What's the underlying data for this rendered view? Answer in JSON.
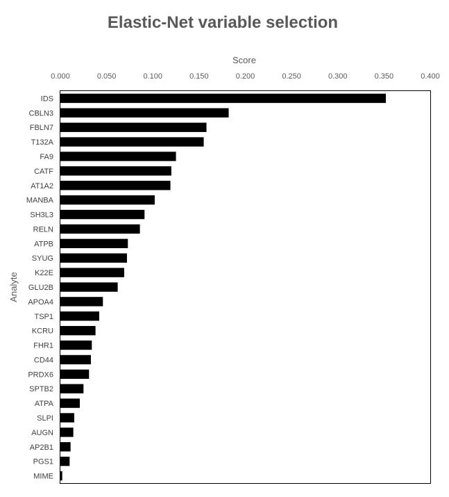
{
  "chart_data": {
    "type": "bar",
    "orientation": "horizontal",
    "title": "Elastic-Net variable selection",
    "xlabel": "Score",
    "ylabel": "Analyte",
    "xlim": [
      0,
      0.4
    ],
    "x_ticks": [
      "0.000",
      "0.050",
      "0.100",
      "0.150",
      "0.200",
      "0.250",
      "0.300",
      "0.350",
      "0.400"
    ],
    "x_tick_values": [
      0,
      0.05,
      0.1,
      0.15,
      0.2,
      0.25,
      0.3,
      0.35,
      0.4
    ],
    "x_axis_position": "top",
    "grid": false,
    "bar_color": "#000000",
    "categories": [
      "IDS",
      "CBLN3",
      "FBLN7",
      "T132A",
      "FA9",
      "CATF",
      "AT1A2",
      "MANBA",
      "SH3L3",
      "RELN",
      "ATPB",
      "SYUG",
      "K22E",
      "GLU2B",
      "APOA4",
      "TSP1",
      "KCRU",
      "FHR1",
      "CD44",
      "PRDX6",
      "SPTB2",
      "ATPA",
      "SLPI",
      "AUGN",
      "AP2B1",
      "PGS1",
      "MIME"
    ],
    "values": [
      0.352,
      0.182,
      0.158,
      0.155,
      0.125,
      0.12,
      0.119,
      0.102,
      0.091,
      0.086,
      0.073,
      0.072,
      0.069,
      0.062,
      0.046,
      0.042,
      0.038,
      0.034,
      0.033,
      0.031,
      0.025,
      0.021,
      0.015,
      0.014,
      0.011,
      0.01,
      0.002
    ]
  }
}
